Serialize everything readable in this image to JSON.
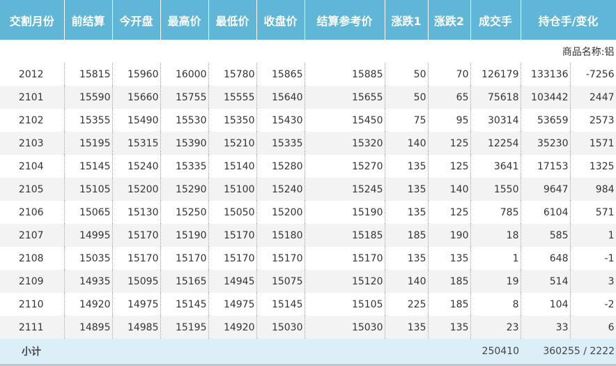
{
  "table": {
    "headers": [
      "交割月份",
      "前结算",
      "今开盘",
      "最高价",
      "最低价",
      "收盘价",
      "结算参考价",
      "涨跌1",
      "涨跌2",
      "成交手",
      "持仓手/变化"
    ],
    "section": "商品名称:铝",
    "rows": [
      [
        "2012",
        15815,
        15960,
        16000,
        15780,
        15865,
        15885,
        50,
        70,
        126179,
        133136,
        -7256
      ],
      [
        "2101",
        15590,
        15660,
        15755,
        15555,
        15640,
        15655,
        50,
        65,
        75618,
        103442,
        2447
      ],
      [
        "2102",
        15355,
        15490,
        15530,
        15350,
        15430,
        15450,
        75,
        95,
        30314,
        53659,
        2573
      ],
      [
        "2103",
        15195,
        15315,
        15390,
        15210,
        15335,
        15320,
        140,
        125,
        12254,
        35230,
        1571
      ],
      [
        "2104",
        15145,
        15240,
        15335,
        15140,
        15280,
        15270,
        135,
        125,
        3641,
        17153,
        1325
      ],
      [
        "2105",
        15105,
        15200,
        15290,
        15100,
        15240,
        15245,
        135,
        140,
        1550,
        9647,
        984
      ],
      [
        "2106",
        15065,
        15130,
        15250,
        15050,
        15200,
        15190,
        135,
        125,
        785,
        6104,
        571
      ],
      [
        "2107",
        14995,
        15170,
        15190,
        15170,
        15180,
        15185,
        185,
        190,
        18,
        585,
        1
      ],
      [
        "2108",
        15035,
        15170,
        15170,
        15170,
        15170,
        15170,
        135,
        135,
        1,
        648,
        -1
      ],
      [
        "2109",
        14935,
        15095,
        15165,
        14945,
        15075,
        15120,
        140,
        185,
        19,
        514,
        3
      ],
      [
        "2110",
        14920,
        14975,
        15145,
        14975,
        15145,
        15105,
        225,
        185,
        8,
        104,
        -2
      ],
      [
        "2111",
        14895,
        14985,
        15195,
        14920,
        15030,
        15030,
        135,
        135,
        23,
        33,
        6
      ]
    ],
    "subtotal": [
      "小计",
      250410,
      "360255 / 2222"
    ]
  }
}
